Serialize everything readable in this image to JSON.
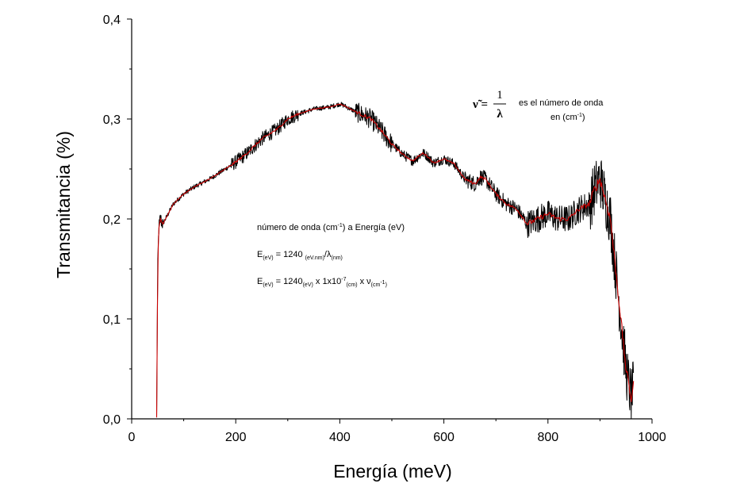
{
  "chart_data": {
    "type": "line",
    "title": "",
    "xlabel": "Energía (meV)",
    "ylabel": "Transmitancia (%)",
    "xlim": [
      0,
      1000
    ],
    "ylim": [
      0,
      0.4
    ],
    "x_ticks": [
      "0",
      "200",
      "400",
      "600",
      "800",
      "1000"
    ],
    "y_ticks": [
      "0,0",
      "0,1",
      "0,2",
      "0,3",
      "0,4"
    ],
    "grid": false,
    "legend": "none",
    "series": [
      {
        "color": "#000000",
        "style": "raw noisy spectrum",
        "x": [
          48,
          50,
          52,
          55,
          60,
          70,
          80,
          100,
          120,
          150,
          180,
          200,
          220,
          250,
          280,
          300,
          320,
          350,
          380,
          400,
          410,
          420,
          440,
          460,
          480,
          500,
          520,
          540,
          560,
          570,
          580,
          600,
          620,
          640,
          660,
          670,
          680,
          700,
          720,
          740,
          760,
          780,
          800,
          820,
          840,
          860,
          880,
          890,
          900,
          910,
          920,
          930,
          940,
          950,
          960,
          965
        ],
        "y": [
          0.0,
          0.15,
          0.19,
          0.2,
          0.195,
          0.205,
          0.215,
          0.225,
          0.232,
          0.24,
          0.25,
          0.257,
          0.265,
          0.28,
          0.29,
          0.3,
          0.305,
          0.31,
          0.312,
          0.315,
          0.313,
          0.31,
          0.305,
          0.3,
          0.288,
          0.275,
          0.265,
          0.258,
          0.266,
          0.262,
          0.256,
          0.26,
          0.255,
          0.24,
          0.235,
          0.242,
          0.24,
          0.225,
          0.215,
          0.21,
          0.195,
          0.2,
          0.205,
          0.2,
          0.2,
          0.21,
          0.215,
          0.23,
          0.24,
          0.22,
          0.2,
          0.15,
          0.1,
          0.05,
          0.02,
          0.035
        ]
      },
      {
        "color": "#cc0000",
        "style": "smoothed spectrum",
        "x": [
          48,
          50,
          52,
          55,
          60,
          70,
          80,
          100,
          120,
          150,
          180,
          200,
          220,
          250,
          280,
          300,
          320,
          350,
          380,
          400,
          410,
          420,
          440,
          460,
          480,
          500,
          520,
          540,
          560,
          570,
          580,
          600,
          620,
          640,
          660,
          670,
          680,
          700,
          720,
          740,
          760,
          780,
          800,
          820,
          840,
          860,
          880,
          890,
          900,
          910,
          920,
          930,
          940,
          950,
          960,
          965
        ],
        "y": [
          0.0,
          0.15,
          0.19,
          0.2,
          0.195,
          0.205,
          0.215,
          0.225,
          0.232,
          0.24,
          0.25,
          0.257,
          0.265,
          0.28,
          0.29,
          0.3,
          0.305,
          0.31,
          0.312,
          0.315,
          0.313,
          0.31,
          0.305,
          0.3,
          0.288,
          0.275,
          0.265,
          0.258,
          0.266,
          0.262,
          0.256,
          0.26,
          0.255,
          0.24,
          0.235,
          0.242,
          0.24,
          0.225,
          0.215,
          0.21,
          0.195,
          0.2,
          0.205,
          0.2,
          0.2,
          0.21,
          0.215,
          0.23,
          0.24,
          0.22,
          0.2,
          0.15,
          0.1,
          0.05,
          0.02,
          0.035
        ]
      }
    ],
    "annotations": {
      "formula_lhs": "ν̃ =",
      "formula_num": "1",
      "formula_den": "λ",
      "formula_text1": "es el número de onda",
      "formula_text2_pre": "en (cm",
      "formula_text2_sup": "-1",
      "formula_text2_post": ")",
      "line1_a": "número de onda (cm",
      "line1_sup": "-1",
      "line1_b": ") a Energía (eV)",
      "line2_E": "E",
      "line2_sub1": "(eV)",
      "line2_mid": " = 1240 ",
      "line2_sub2": "(eV.nm)",
      "line2_slash": "/λ",
      "line2_sub3": "(nm)",
      "line3_E": "E",
      "line3_sub1": "(eV)",
      "line3_mid": " = 1240",
      "line3_sub2": "(eV)",
      "line3_x1": " x 1x10",
      "line3_sup": "-7",
      "line3_sub3": "(cm)",
      "line3_x2": " x ν",
      "line3_sub4": "(cm",
      "line3_sup2": "-1",
      "line3_sub4b": ")"
    }
  }
}
